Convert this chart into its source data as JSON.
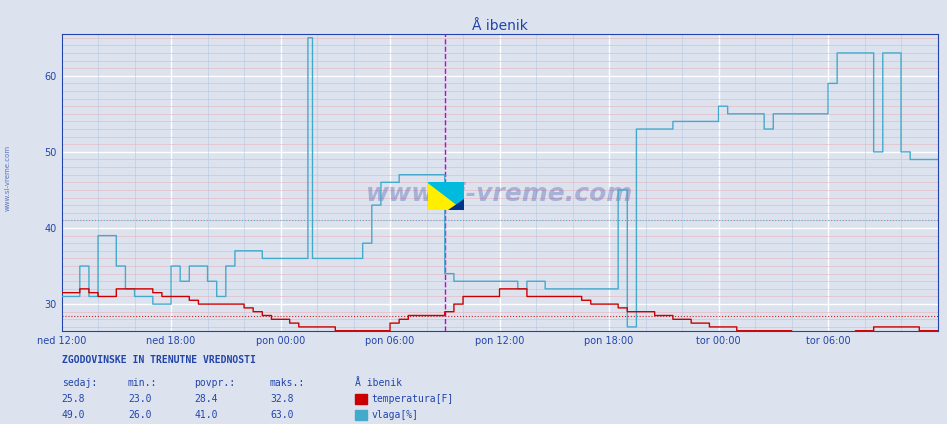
{
  "title": "Å ibenik",
  "bg_color": "#dce3ef",
  "plot_bg_color": "#dce3ef",
  "grid_white": "#ffffff",
  "grid_red_minor": "#e8b0b8",
  "grid_blue_minor": "#b8c8e0",
  "x_labels": [
    "ned 12:00",
    "ned 18:00",
    "pon 00:00",
    "pon 06:00",
    "pon 12:00",
    "pon 18:00",
    "tor 00:00",
    "tor 06:00"
  ],
  "x_ticks_pos": [
    0,
    72,
    144,
    216,
    288,
    360,
    432,
    504
  ],
  "x_max": 576,
  "ylim": [
    26.5,
    65.5
  ],
  "yticks": [
    30,
    40,
    50,
    60
  ],
  "temp_color": "#cc0000",
  "vlaga_color": "#44aacc",
  "avg_temp": 28.4,
  "avg_vlaga": 41.0,
  "vline_x": 252,
  "watermark": "www.si-vreme.com",
  "label_color": "#2244aa",
  "temp_label": "temperatura[F]",
  "vlaga_label": "vlaga[%]",
  "footer_title": "ZGODOVINSKE IN TRENUTNE VREDNOSTI",
  "sedaj_temp": 25.8,
  "min_temp": 23.0,
  "povpr_temp": 28.4,
  "maks_temp": 32.8,
  "sedaj_vlaga": 49.0,
  "min_vlaga": 26.0,
  "povpr_vlaga": 41.0,
  "maks_vlaga": 63.0
}
